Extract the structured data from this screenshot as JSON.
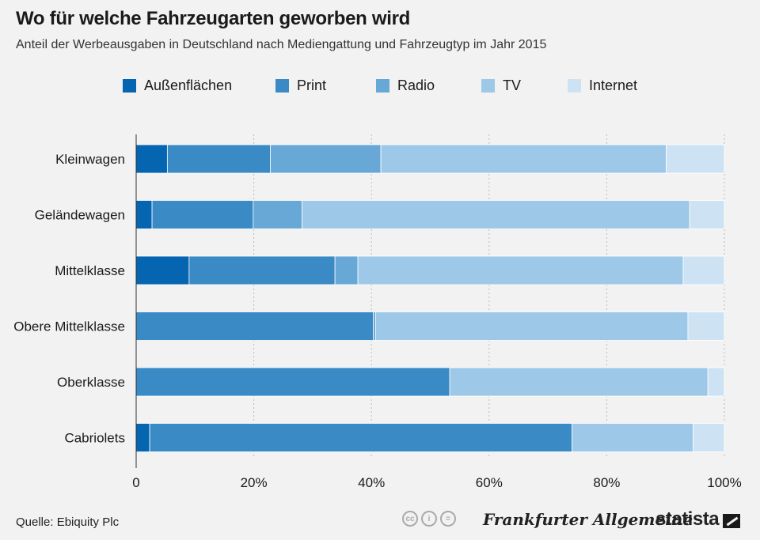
{
  "title": "Wo für welche Fahrzeugarten geworben wird",
  "subtitle": "Anteil der Werbeausgaben in Deutschland nach Mediengattung und Fahrzeugtyp im Jahr 2015",
  "colors": {
    "Außenflächen": "#0565b0",
    "Print": "#3a8ac6",
    "Radio": "#68a8d6",
    "TV": "#9ec8e8",
    "Internet": "#cde3f3"
  },
  "chart_data": {
    "type": "bar",
    "orientation": "horizontal",
    "stacked": true,
    "categories": [
      "Kleinwagen",
      "Geländewagen",
      "Mittelklasse",
      "Obere Mittelklasse",
      "Oberklasse",
      "Cabriolets"
    ],
    "series": [
      {
        "name": "Außenflächen",
        "values": [
          5.3,
          2.7,
          9.0,
          0,
          0,
          2.3
        ]
      },
      {
        "name": "Print",
        "values": [
          17.5,
          17.2,
          24.8,
          40.3,
          53.3,
          71.8
        ]
      },
      {
        "name": "Radio",
        "values": [
          18.8,
          8.3,
          3.9,
          0.4,
          0,
          0
        ]
      },
      {
        "name": "TV",
        "values": [
          48.5,
          65.9,
          55.3,
          53.1,
          43.9,
          20.6
        ]
      },
      {
        "name": "Internet",
        "values": [
          9.9,
          5.9,
          7.0,
          6.2,
          2.8,
          5.3
        ]
      }
    ],
    "xlim": [
      0,
      100
    ],
    "xticks": [
      "0",
      "20%",
      "40%",
      "60%",
      "80%",
      "100%"
    ],
    "grid": "vertical dotted",
    "legend": "top"
  },
  "footer": {
    "source": "Quelle: Ebiquity Plc",
    "cc_icons": [
      "cc-icon",
      "by-icon",
      "equals-icon"
    ],
    "faz_logo": "Frankfurter Allgemeine",
    "statista_logo": "statista"
  }
}
